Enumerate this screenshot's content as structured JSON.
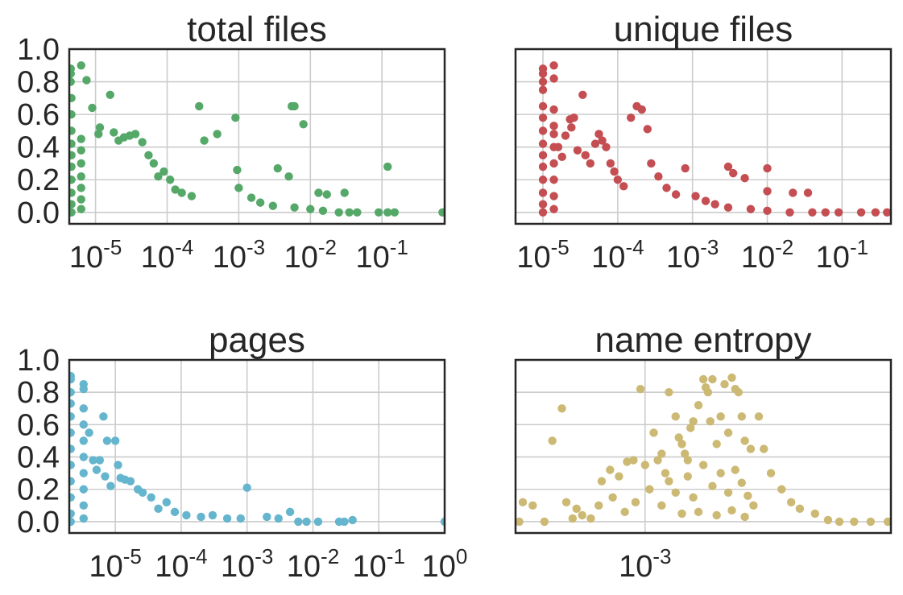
{
  "chart_data": [
    {
      "type": "scatter",
      "title": "total files",
      "xscale": "log",
      "xlim": [
        4.3e-06,
        0.75
      ],
      "ylim": [
        -0.07,
        1.0
      ],
      "yticks": [
        "0.0",
        "0.2",
        "0.4",
        "0.6",
        "0.8",
        "1.0"
      ],
      "xticks": [
        {
          "base": "10",
          "exp": "-5",
          "value": 1e-05
        },
        {
          "base": "10",
          "exp": "-4",
          "value": 0.0001
        },
        {
          "base": "10",
          "exp": "-3",
          "value": 0.001
        },
        {
          "base": "10",
          "exp": "-2",
          "value": 0.01
        },
        {
          "base": "10",
          "exp": "-1",
          "value": 0.1
        }
      ],
      "grid": true,
      "color": "#55a868",
      "points": [
        [
          4.5e-06,
          0.88
        ],
        [
          4.5e-06,
          0.85
        ],
        [
          4.5e-06,
          0.8
        ],
        [
          4.6e-06,
          0.7
        ],
        [
          4.6e-06,
          0.6
        ],
        [
          4.6e-06,
          0.5
        ],
        [
          4.6e-06,
          0.42
        ],
        [
          4.6e-06,
          0.35
        ],
        [
          4.6e-06,
          0.28
        ],
        [
          4.6e-06,
          0.2
        ],
        [
          4.6e-06,
          0.12
        ],
        [
          4.6e-06,
          0.05
        ],
        [
          4.6e-06,
          0.0
        ],
        [
          6.3e-06,
          0.9
        ],
        [
          6.3e-06,
          0.45
        ],
        [
          6.3e-06,
          0.38
        ],
        [
          6.3e-06,
          0.3
        ],
        [
          6.3e-06,
          0.22
        ],
        [
          6.3e-06,
          0.15
        ],
        [
          6.3e-06,
          0.08
        ],
        [
          6.3e-06,
          0.02
        ],
        [
          7.5e-06,
          0.81
        ],
        [
          9e-06,
          0.64
        ],
        [
          1.1e-05,
          0.48
        ],
        [
          1.15e-05,
          0.52
        ],
        [
          1.6e-05,
          0.72
        ],
        [
          1.8e-05,
          0.49
        ],
        [
          2.1e-05,
          0.44
        ],
        [
          2.5e-05,
          0.46
        ],
        [
          3e-05,
          0.47
        ],
        [
          3.6e-05,
          0.48
        ],
        [
          4.5e-05,
          0.43
        ],
        [
          5.5e-05,
          0.35
        ],
        [
          6.5e-05,
          0.3
        ],
        [
          7.5e-05,
          0.22
        ],
        [
          9e-05,
          0.25
        ],
        [
          0.00011,
          0.2
        ],
        [
          0.00013,
          0.14
        ],
        [
          0.00016,
          0.12
        ],
        [
          0.00022,
          0.1
        ],
        [
          0.00028,
          0.65
        ],
        [
          0.00033,
          0.44
        ],
        [
          0.0005,
          0.48
        ],
        [
          0.0009,
          0.58
        ],
        [
          0.00095,
          0.26
        ],
        [
          0.001,
          0.15
        ],
        [
          0.0015,
          0.09
        ],
        [
          0.0035,
          0.27
        ],
        [
          0.0055,
          0.65
        ],
        [
          0.006,
          0.65
        ],
        [
          0.008,
          0.54
        ],
        [
          0.005,
          0.22
        ],
        [
          0.013,
          0.12
        ],
        [
          0.017,
          0.11
        ],
        [
          0.03,
          0.12
        ],
        [
          0.12,
          0.28
        ],
        [
          0.002,
          0.06
        ],
        [
          0.003,
          0.04
        ],
        [
          0.006,
          0.03
        ],
        [
          0.01,
          0.02
        ],
        [
          0.015,
          0.01
        ],
        [
          0.025,
          0.0
        ],
        [
          0.035,
          0.0
        ],
        [
          0.045,
          0.0
        ],
        [
          0.09,
          0.0
        ],
        [
          0.12,
          0.0
        ],
        [
          0.15,
          0.0
        ],
        [
          0.7,
          0.0
        ]
      ]
    },
    {
      "type": "scatter",
      "title": "unique files",
      "xscale": "log",
      "xlim": [
        4.3e-06,
        0.45
      ],
      "ylim": [
        -0.07,
        1.0
      ],
      "yticks": [
        "0.0",
        "0.2",
        "0.4",
        "0.6",
        "0.8",
        "1.0"
      ],
      "xticks": [
        {
          "base": "10",
          "exp": "-5",
          "value": 1e-05
        },
        {
          "base": "10",
          "exp": "-4",
          "value": 0.0001
        },
        {
          "base": "10",
          "exp": "-3",
          "value": 0.001
        },
        {
          "base": "10",
          "exp": "-2",
          "value": 0.01
        },
        {
          "base": "10",
          "exp": "-1",
          "value": 0.1
        }
      ],
      "grid": true,
      "color": "#c44e52",
      "points": [
        [
          1e-05,
          0.88
        ],
        [
          1e-05,
          0.85
        ],
        [
          1e-05,
          0.8
        ],
        [
          1e-05,
          0.75
        ],
        [
          1e-05,
          0.65
        ],
        [
          1e-05,
          0.58
        ],
        [
          1e-05,
          0.5
        ],
        [
          1e-05,
          0.42
        ],
        [
          1e-05,
          0.35
        ],
        [
          1e-05,
          0.28
        ],
        [
          1e-05,
          0.2
        ],
        [
          1e-05,
          0.12
        ],
        [
          1e-05,
          0.05
        ],
        [
          1e-05,
          0.0
        ],
        [
          1.4e-05,
          0.9
        ],
        [
          1.4e-05,
          0.82
        ],
        [
          1.4e-05,
          0.63
        ],
        [
          1.4e-05,
          0.53
        ],
        [
          1.4e-05,
          0.48
        ],
        [
          1.4e-05,
          0.4
        ],
        [
          1.4e-05,
          0.3
        ],
        [
          1.4e-05,
          0.2
        ],
        [
          1.4e-05,
          0.1
        ],
        [
          1.4e-05,
          0.02
        ],
        [
          1.6e-05,
          0.4
        ],
        [
          1.8e-05,
          0.34
        ],
        [
          2e-05,
          0.47
        ],
        [
          2.3e-05,
          0.57
        ],
        [
          2.6e-05,
          0.58
        ],
        [
          2.4e-05,
          0.52
        ],
        [
          2.9e-05,
          0.38
        ],
        [
          3.4e-05,
          0.72
        ],
        [
          3.7e-05,
          0.35
        ],
        [
          4.3e-05,
          0.3
        ],
        [
          5e-05,
          0.42
        ],
        [
          5.6e-05,
          0.48
        ],
        [
          6.2e-05,
          0.44
        ],
        [
          7e-05,
          0.4
        ],
        [
          8e-05,
          0.3
        ],
        [
          9e-05,
          0.25
        ],
        [
          0.0001,
          0.2
        ],
        [
          0.00012,
          0.16
        ],
        [
          0.00015,
          0.58
        ],
        [
          0.00018,
          0.65
        ],
        [
          0.00021,
          0.63
        ],
        [
          0.00025,
          0.51
        ],
        [
          0.00028,
          0.3
        ],
        [
          0.00035,
          0.22
        ],
        [
          0.00045,
          0.15
        ],
        [
          0.0006,
          0.11
        ],
        [
          0.0008,
          0.27
        ],
        [
          0.0011,
          0.1
        ],
        [
          0.0015,
          0.07
        ],
        [
          0.003,
          0.28
        ],
        [
          0.0035,
          0.24
        ],
        [
          0.005,
          0.21
        ],
        [
          0.01,
          0.13
        ],
        [
          0.01,
          0.27
        ],
        [
          0.022,
          0.12
        ],
        [
          0.035,
          0.12
        ],
        [
          0.002,
          0.05
        ],
        [
          0.003,
          0.03
        ],
        [
          0.006,
          0.02
        ],
        [
          0.01,
          0.01
        ],
        [
          0.02,
          0.0
        ],
        [
          0.04,
          0.0
        ],
        [
          0.06,
          0.0
        ],
        [
          0.09,
          0.0
        ],
        [
          0.18,
          0.0
        ],
        [
          0.28,
          0.0
        ],
        [
          0.4,
          0.0
        ]
      ]
    },
    {
      "type": "scatter",
      "title": "pages",
      "xscale": "log",
      "xlim": [
        2e-06,
        1.0
      ],
      "ylim": [
        -0.07,
        1.0
      ],
      "yticks": [
        "0.0",
        "0.2",
        "0.4",
        "0.6",
        "0.8",
        "1.0"
      ],
      "xticks": [
        {
          "base": "10",
          "exp": "-5",
          "value": 1e-05
        },
        {
          "base": "10",
          "exp": "-4",
          "value": 0.0001
        },
        {
          "base": "10",
          "exp": "-3",
          "value": 0.001
        },
        {
          "base": "10",
          "exp": "-2",
          "value": 0.01
        },
        {
          "base": "10",
          "exp": "-1",
          "value": 0.1
        },
        {
          "base": "10",
          "exp": "0",
          "value": 1.0
        }
      ],
      "grid": true,
      "color": "#64b5cd",
      "points": [
        [
          2.1e-06,
          0.9
        ],
        [
          2.1e-06,
          0.88
        ],
        [
          2.1e-06,
          0.8
        ],
        [
          2.1e-06,
          0.73
        ],
        [
          2.1e-06,
          0.65
        ],
        [
          2.1e-06,
          0.55
        ],
        [
          2.1e-06,
          0.45
        ],
        [
          2.1e-06,
          0.35
        ],
        [
          2.1e-06,
          0.25
        ],
        [
          2.1e-06,
          0.15
        ],
        [
          2.1e-06,
          0.05
        ],
        [
          2.1e-06,
          0.0
        ],
        [
          3.3e-06,
          0.85
        ],
        [
          3.3e-06,
          0.82
        ],
        [
          3.3e-06,
          0.7
        ],
        [
          3.3e-06,
          0.6
        ],
        [
          3.3e-06,
          0.5
        ],
        [
          3.3e-06,
          0.4
        ],
        [
          3.3e-06,
          0.3
        ],
        [
          3.3e-06,
          0.2
        ],
        [
          3.3e-06,
          0.1
        ],
        [
          3.3e-06,
          0.02
        ],
        [
          4e-06,
          0.55
        ],
        [
          4.6e-06,
          0.38
        ],
        [
          5.2e-06,
          0.32
        ],
        [
          5.8e-06,
          0.38
        ],
        [
          6.6e-06,
          0.65
        ],
        [
          7e-06,
          0.28
        ],
        [
          7.5e-06,
          0.5
        ],
        [
          8.5e-06,
          0.22
        ],
        [
          1e-05,
          0.5
        ],
        [
          1.1e-05,
          0.35
        ],
        [
          1.2e-05,
          0.27
        ],
        [
          1.4e-05,
          0.26
        ],
        [
          1.7e-05,
          0.25
        ],
        [
          2.2e-05,
          0.2
        ],
        [
          2.6e-05,
          0.18
        ],
        [
          3.5e-05,
          0.15
        ],
        [
          4.5e-05,
          0.08
        ],
        [
          6e-05,
          0.12
        ],
        [
          8e-05,
          0.06
        ],
        [
          0.00012,
          0.04
        ],
        [
          0.0002,
          0.03
        ],
        [
          0.0003,
          0.04
        ],
        [
          0.0005,
          0.02
        ],
        [
          0.0008,
          0.02
        ],
        [
          0.001,
          0.21
        ],
        [
          0.002,
          0.03
        ],
        [
          0.003,
          0.02
        ],
        [
          0.0045,
          0.06
        ],
        [
          0.006,
          0.0
        ],
        [
          0.008,
          0.0
        ],
        [
          0.012,
          0.0
        ],
        [
          0.025,
          0.0
        ],
        [
          0.03,
          0.0
        ],
        [
          0.04,
          0.01
        ],
        [
          1.0,
          0.0
        ]
      ]
    },
    {
      "type": "scatter",
      "title": "name entropy",
      "xscale": "log",
      "xlim": [
        0.00024,
        0.015
      ],
      "ylim": [
        -0.07,
        1.0
      ],
      "yticks": [
        "0.0",
        "0.2",
        "0.4",
        "0.6",
        "0.8",
        "1.0"
      ],
      "xticks": [
        {
          "base": "10",
          "exp": "-3",
          "value": 0.001
        }
      ],
      "grid": true,
      "color": "#ccb974",
      "points": [
        [
          0.00025,
          0.0
        ],
        [
          0.00026,
          0.12
        ],
        [
          0.00029,
          0.1
        ],
        [
          0.00033,
          0.0
        ],
        [
          0.00036,
          0.5
        ],
        [
          0.0004,
          0.7
        ],
        [
          0.00042,
          0.12
        ],
        [
          0.00047,
          0.08
        ],
        [
          0.00055,
          0.02
        ],
        [
          0.00062,
          0.25
        ],
        [
          0.00068,
          0.32
        ],
        [
          0.00075,
          0.28
        ],
        [
          0.00082,
          0.37
        ],
        [
          0.00088,
          0.38
        ],
        [
          0.00095,
          0.82
        ],
        [
          0.001,
          0.35
        ],
        [
          0.00105,
          0.2
        ],
        [
          0.0011,
          0.55
        ],
        [
          0.00115,
          0.38
        ],
        [
          0.0012,
          0.42
        ],
        [
          0.00125,
          0.3
        ],
        [
          0.0013,
          0.8
        ],
        [
          0.0014,
          0.65
        ],
        [
          0.00145,
          0.52
        ],
        [
          0.0015,
          0.48
        ],
        [
          0.00155,
          0.42
        ],
        [
          0.0016,
          0.38
        ],
        [
          0.00165,
          0.58
        ],
        [
          0.0017,
          0.62
        ],
        [
          0.0018,
          0.72
        ],
        [
          0.0019,
          0.88
        ],
        [
          0.00195,
          0.83
        ],
        [
          0.002,
          0.8
        ],
        [
          0.00205,
          0.62
        ],
        [
          0.0021,
          0.88
        ],
        [
          0.0022,
          0.48
        ],
        [
          0.0023,
          0.65
        ],
        [
          0.0024,
          0.85
        ],
        [
          0.0025,
          0.55
        ],
        [
          0.0026,
          0.89
        ],
        [
          0.0027,
          0.82
        ],
        [
          0.0028,
          0.8
        ],
        [
          0.0029,
          0.65
        ],
        [
          0.003,
          0.5
        ],
        [
          0.0032,
          0.45
        ],
        [
          0.0035,
          0.65
        ],
        [
          0.0037,
          0.45
        ],
        [
          0.004,
          0.3
        ],
        [
          0.0045,
          0.2
        ],
        [
          0.005,
          0.12
        ],
        [
          0.0055,
          0.08
        ],
        [
          0.0065,
          0.05
        ],
        [
          0.0075,
          0.01
        ],
        [
          0.0085,
          0.0
        ],
        [
          0.01,
          0.0
        ],
        [
          0.012,
          0.0
        ],
        [
          0.0145,
          0.0
        ],
        [
          0.0013,
          0.25
        ],
        [
          0.0014,
          0.18
        ],
        [
          0.0016,
          0.28
        ],
        [
          0.0017,
          0.15
        ],
        [
          0.0019,
          0.35
        ],
        [
          0.0021,
          0.22
        ],
        [
          0.0023,
          0.3
        ],
        [
          0.0025,
          0.18
        ],
        [
          0.0027,
          0.32
        ],
        [
          0.0029,
          0.24
        ],
        [
          0.0031,
          0.16
        ],
        [
          0.0033,
          0.1
        ],
        [
          0.0015,
          0.05
        ],
        [
          0.0018,
          0.06
        ],
        [
          0.0022,
          0.04
        ],
        [
          0.0026,
          0.07
        ],
        [
          0.003,
          0.03
        ],
        [
          0.0012,
          0.1
        ],
        [
          0.0009,
          0.12
        ],
        [
          0.0008,
          0.06
        ],
        [
          0.0007,
          0.15
        ],
        [
          0.0006,
          0.1
        ],
        [
          0.0005,
          0.04
        ],
        [
          0.00045,
          0.02
        ]
      ]
    }
  ]
}
